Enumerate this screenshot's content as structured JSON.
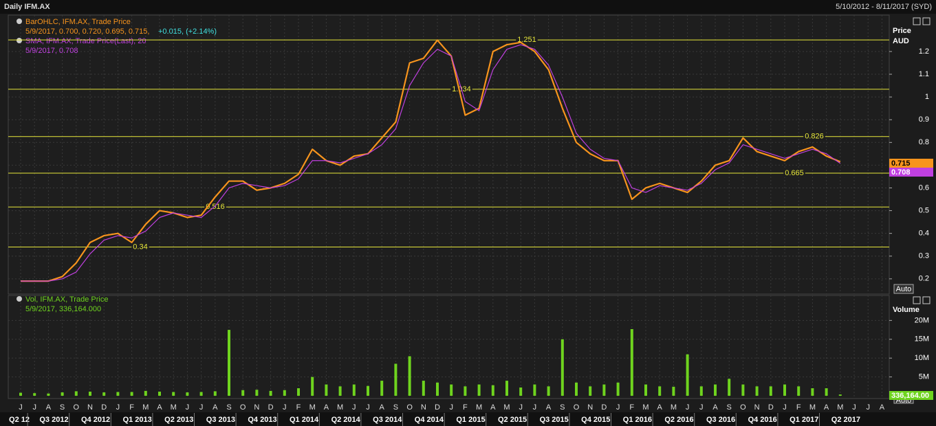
{
  "header": {
    "title": "Daily IFM.AX",
    "range": "5/10/2012 - 8/11/2017 (SYD)"
  },
  "chart_data": [
    {
      "type": "line",
      "legend": [
        {
          "title": "BarOHLC, IFM.AX, Trade Price",
          "values_text": "5/9/2017, 0.700, 0.720, 0.695, 0.715,",
          "change_text": "+0.015, (+2.14%)"
        },
        {
          "title": "SMA, IFM.AX, Trade Price(Last),  20",
          "values_text": "5/9/2017, 0.708"
        }
      ],
      "y_label": [
        "Price",
        "AUD"
      ],
      "scale_button": "Auto",
      "categories": [
        "J",
        "J",
        "A",
        "S",
        "O",
        "N",
        "D",
        "J",
        "F",
        "M",
        "A",
        "M",
        "J",
        "J",
        "A",
        "S",
        "O",
        "N",
        "D",
        "J",
        "F",
        "M",
        "A",
        "M",
        "J",
        "J",
        "A",
        "S",
        "O",
        "N",
        "D",
        "J",
        "F",
        "M",
        "A",
        "M",
        "J",
        "J",
        "A",
        "S",
        "O",
        "N",
        "D",
        "J",
        "F",
        "M",
        "A",
        "M",
        "J",
        "J",
        "A",
        "S",
        "O",
        "N",
        "D",
        "J",
        "F",
        "M",
        "A",
        "M",
        "J",
        "J",
        "A"
      ],
      "quarters": [
        "Q2 12",
        "Q3 2012",
        "Q4 2012",
        "Q1 2013",
        "Q2 2013",
        "Q3 2013",
        "Q4 2013",
        "Q1 2014",
        "Q2 2014",
        "Q3 2014",
        "Q4 2014",
        "Q1 2015",
        "Q2 2015",
        "Q3 2015",
        "Q4 2015",
        "Q1 2016",
        "Q2 2016",
        "Q3 2016",
        "Q4 2016",
        "Q1 2017",
        "Q2 2017"
      ],
      "series": [
        {
          "name": "BarOHLC",
          "color": "#f7941d",
          "values": [
            0.19,
            0.19,
            0.19,
            0.21,
            0.27,
            0.36,
            0.39,
            0.4,
            0.36,
            0.44,
            0.5,
            0.49,
            0.47,
            0.48,
            0.56,
            0.63,
            0.63,
            0.59,
            0.6,
            0.62,
            0.66,
            0.77,
            0.72,
            0.7,
            0.74,
            0.75,
            0.82,
            0.89,
            1.15,
            1.17,
            1.25,
            1.18,
            0.92,
            0.95,
            1.2,
            1.23,
            1.24,
            1.2,
            1.12,
            0.95,
            0.8,
            0.75,
            0.72,
            0.72,
            0.55,
            0.6,
            0.62,
            0.6,
            0.58,
            0.63,
            0.7,
            0.72,
            0.82,
            0.76,
            0.74,
            0.72,
            0.76,
            0.78,
            0.74,
            0.715,
            null,
            null,
            null
          ]
        },
        {
          "name": "SMA",
          "color": "#c040e0",
          "values": [
            0.19,
            0.19,
            0.19,
            0.2,
            0.23,
            0.31,
            0.37,
            0.39,
            0.38,
            0.41,
            0.47,
            0.49,
            0.48,
            0.47,
            0.52,
            0.6,
            0.62,
            0.61,
            0.6,
            0.61,
            0.64,
            0.72,
            0.72,
            0.71,
            0.73,
            0.75,
            0.79,
            0.86,
            1.05,
            1.15,
            1.21,
            1.18,
            0.98,
            0.94,
            1.12,
            1.21,
            1.23,
            1.21,
            1.14,
            1.0,
            0.84,
            0.77,
            0.73,
            0.72,
            0.6,
            0.58,
            0.61,
            0.6,
            0.59,
            0.62,
            0.68,
            0.71,
            0.79,
            0.77,
            0.75,
            0.73,
            0.75,
            0.77,
            0.75,
            0.708,
            null,
            null,
            null
          ]
        }
      ],
      "levels": [
        0.34,
        0.516,
        1.034,
        1.251,
        0.826,
        0.665
      ],
      "level_color": "#e8e83a",
      "ylim": [
        0.133,
        1.354
      ],
      "yticks": [
        0.2,
        0.3,
        0.4,
        0.5,
        0.6,
        0.7,
        0.8,
        0.9,
        1,
        1.1,
        1.2
      ],
      "grid": true
    },
    {
      "type": "bar",
      "legend": {
        "title": "Vol, IFM.AX, Trade Price",
        "values_text": "5/9/2017, 336,164.000"
      },
      "y_label": "Volume",
      "scale_button": "Auto",
      "color": "#6fd41e",
      "values": [
        800000,
        700000,
        600000,
        900000,
        1200000,
        1100000,
        900000,
        1000000,
        1000000,
        1300000,
        1100000,
        1000000,
        900000,
        1000000,
        1200000,
        17500000,
        1500000,
        1600000,
        1300000,
        1500000,
        2000000,
        5000000,
        3000000,
        2500000,
        3000000,
        2600000,
        4000000,
        8500000,
        10500000,
        4000000,
        3500000,
        3000000,
        2500000,
        3000000,
        2800000,
        4000000,
        2200000,
        3000000,
        2500000,
        15000000,
        3500000,
        2500000,
        3000000,
        3500000,
        17700000,
        3000000,
        2500000,
        2400000,
        11000000,
        2500000,
        3000000,
        4500000,
        3000000,
        2500000,
        2500000,
        3000000,
        2500000,
        2000000,
        2000000,
        336164,
        null,
        null,
        null
      ],
      "last_value_label": "336,164.00",
      "ylim": [
        0,
        27000000
      ],
      "yticks": [
        {
          "value": 5000000,
          "label": "5M"
        },
        {
          "value": 10000000,
          "label": "10M"
        },
        {
          "value": 15000000,
          "label": "15M"
        },
        {
          "value": 20000000,
          "label": "20M"
        }
      ],
      "grid": true
    }
  ]
}
